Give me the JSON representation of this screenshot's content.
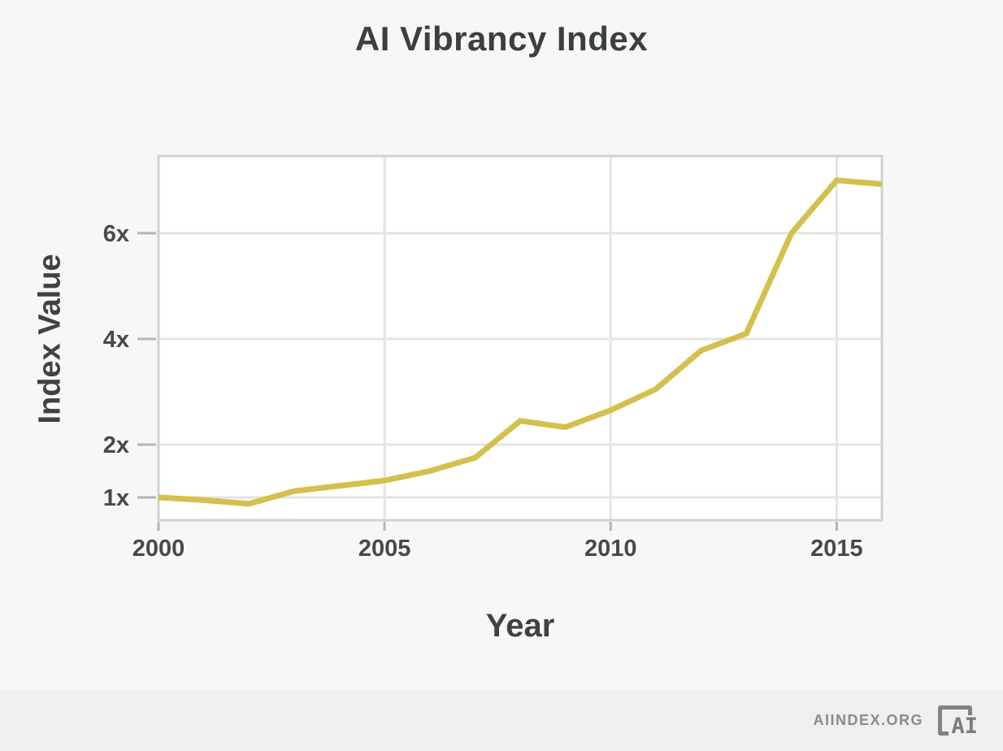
{
  "page": {
    "background": "#f7f7f6",
    "footer_background": "#efefee"
  },
  "header": {
    "title": "AI Vibrancy Index"
  },
  "chart_data": {
    "type": "line",
    "title": "AI Vibrancy Index",
    "xlabel": "Year",
    "ylabel": "Index Value",
    "x": [
      2000,
      2001,
      2002,
      2003,
      2004,
      2005,
      2006,
      2007,
      2008,
      2009,
      2010,
      2011,
      2012,
      2013,
      2014,
      2015,
      2016
    ],
    "series": [
      {
        "name": "AI Vibrancy Index",
        "values": [
          1.0,
          0.95,
          0.88,
          1.12,
          1.22,
          1.32,
          1.5,
          1.75,
          2.45,
          2.33,
          2.65,
          3.05,
          3.78,
          4.1,
          6.0,
          7.0,
          6.93
        ],
        "color": "#d3c04d"
      }
    ],
    "xlim": [
      2000,
      2016
    ],
    "ylim": [
      0.57,
      7.46
    ],
    "x_ticks": [
      2000,
      2005,
      2010,
      2015
    ],
    "x_tick_labels": [
      "2000",
      "2005",
      "2010",
      "2015"
    ],
    "y_ticks": [
      1,
      2,
      4,
      6
    ],
    "y_tick_labels": [
      "1x",
      "2x",
      "4x",
      "6x"
    ],
    "grid": true,
    "legend": "none",
    "line_width": 7,
    "colors": {
      "line": "#d3c04d",
      "grid": "#e4e4e4",
      "border": "#d2d2d2",
      "tick": "#b5b5b5",
      "plot_background": "#ffffff",
      "text": "#3e4245"
    }
  },
  "footer": {
    "site_label": "AIINDEX.ORG",
    "logo_icon": "ai-index-logo",
    "logo_text": "AI"
  }
}
